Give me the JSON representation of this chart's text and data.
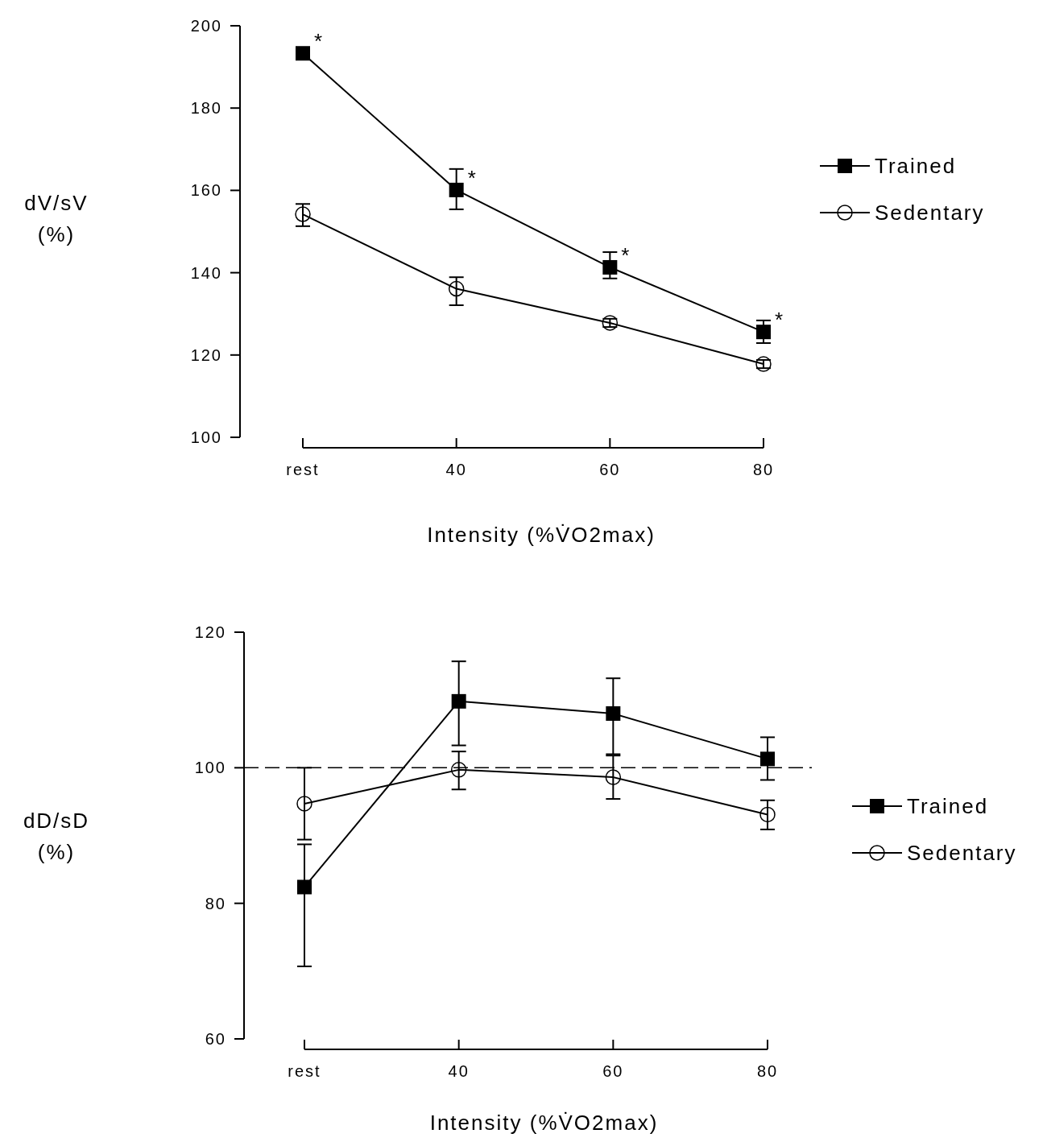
{
  "chart_data": [
    {
      "type": "line",
      "xlabel": "Intensity (%V̇O2max)",
      "ylabel": "dV/sV (%)",
      "categories": [
        "rest",
        "40",
        "60",
        "80"
      ],
      "ylim": [
        100,
        200
      ],
      "yticks": [
        100,
        120,
        140,
        160,
        180,
        200
      ],
      "grid": false,
      "legend": "right",
      "series": [
        {
          "name": "Trained",
          "color": "#000000",
          "marker": "square",
          "values": [
            193.3,
            160.1,
            141.3,
            125.6
          ],
          "errors": [
            null,
            [
              155.4,
              165.2
            ],
            [
              138.6,
              145
            ],
            [
              122.9,
              128.4
            ]
          ]
        },
        {
          "name": "Sedentary",
          "color": "#000000",
          "marker": "circle",
          "values": [
            154.2,
            136.1,
            127.8,
            117.8
          ],
          "errors": [
            [
              151.3,
              156.7
            ],
            [
              132.1,
              138.9
            ],
            [
              126.8,
              128.8
            ],
            [
              116.8,
              118.8
            ]
          ]
        }
      ],
      "annotations": [
        {
          "text": "*",
          "x": "rest",
          "y": 193.3
        },
        {
          "text": "*",
          "x": "40",
          "y": 160.1
        },
        {
          "text": "*",
          "x": "60",
          "y": 141.3
        },
        {
          "text": "*",
          "x": "80",
          "y": 125.6
        }
      ]
    },
    {
      "type": "line",
      "xlabel": "Intensity (%V̇O2max)",
      "ylabel": "dD/sD (%)",
      "categories": [
        "rest",
        "40",
        "60",
        "80"
      ],
      "ylim": [
        60,
        120
      ],
      "yticks": [
        60,
        80,
        100,
        120
      ],
      "grid": false,
      "legend": "right",
      "series": [
        {
          "name": "Trained",
          "color": "#000000",
          "marker": "square",
          "values": [
            82.4,
            109.8,
            108,
            101.3
          ],
          "errors": [
            [
              70.7,
              88.7
            ],
            [
              103.3,
              115.7
            ],
            [
              102,
              113.2
            ],
            [
              98.2,
              104.5
            ]
          ]
        },
        {
          "name": "Sedentary",
          "color": "#000000",
          "marker": "circle",
          "values": [
            94.7,
            99.7,
            98.6,
            93.1
          ],
          "errors": [
            [
              89.4,
              100
            ],
            [
              96.8,
              102.4
            ],
            [
              95.4,
              101.8
            ],
            [
              90.9,
              95.2
            ]
          ]
        }
      ],
      "ref_lines": [
        {
          "axis": "y",
          "value": 100,
          "line_style": "dashed",
          "color": "#000000"
        }
      ]
    }
  ]
}
